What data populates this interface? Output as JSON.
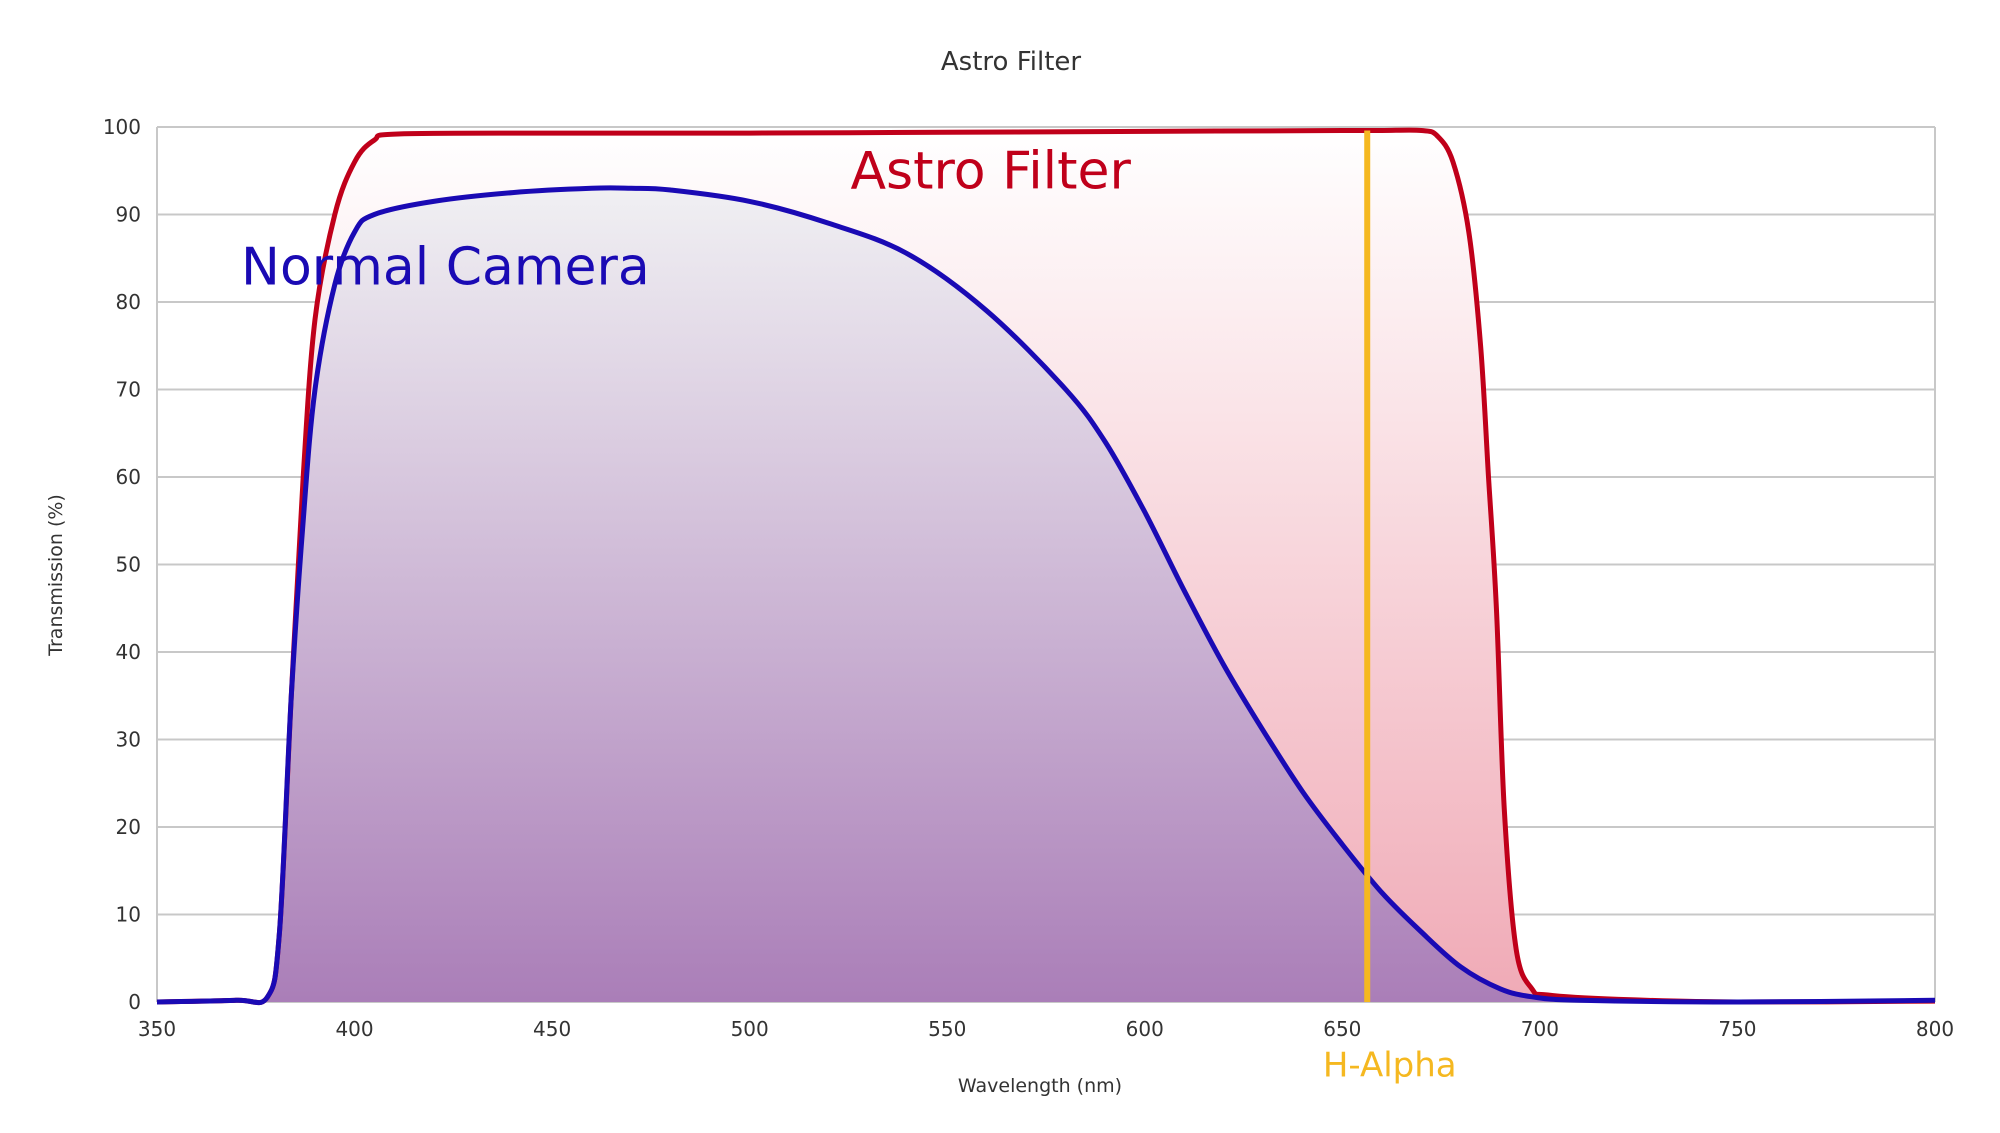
{
  "chart_data": {
    "type": "area",
    "title": "Astro Filter",
    "xlabel": "Wavelength (nm)",
    "ylabel": "Transmission (%)",
    "xlim": [
      350,
      800
    ],
    "ylim": [
      0,
      100
    ],
    "xticks": [
      350,
      400,
      450,
      500,
      550,
      600,
      650,
      700,
      750,
      800
    ],
    "yticks": [
      0,
      10,
      20,
      30,
      40,
      50,
      60,
      70,
      80,
      90,
      100
    ],
    "grid": true,
    "series": [
      {
        "name": "Astro Filter",
        "color": "#c0001a",
        "fill": "pink-to-white gradient",
        "x": [
          350,
          370,
          378,
          381,
          384,
          387,
          390,
          395,
          400,
          405,
          411,
          450,
          500,
          550,
          600,
          650,
          660,
          670,
          674,
          678,
          682,
          685,
          687,
          689,
          691,
          694,
          698,
          702,
          720,
          750,
          800
        ],
        "y": [
          0,
          0.2,
          0.6,
          8,
          35,
          60,
          78,
          90,
          96,
          98.5,
          99.2,
          99.3,
          99.3,
          99.4,
          99.5,
          99.6,
          99.6,
          99.6,
          99,
          96,
          88,
          75,
          60,
          45,
          22,
          6,
          1.5,
          0.8,
          0.3,
          0,
          0.1
        ]
      },
      {
        "name": "Normal Camera",
        "color": "#1a0ab4",
        "fill": "purple-to-white gradient",
        "x": [
          350,
          370,
          378,
          381,
          384,
          387,
          390,
          395,
          400,
          405,
          420,
          440,
          460,
          470,
          480,
          500,
          520,
          540,
          560,
          580,
          590,
          600,
          610,
          620,
          630,
          640,
          650,
          660,
          670,
          680,
          690,
          698,
          710,
          750,
          800
        ],
        "y": [
          0,
          0.2,
          0.6,
          8,
          35,
          55,
          70,
          82,
          88,
          90,
          91.5,
          92.5,
          93,
          93,
          92.8,
          91.5,
          89,
          85.5,
          79,
          70,
          64,
          56,
          47,
          38.5,
          31,
          24,
          18,
          12.5,
          8,
          4,
          1.5,
          0.6,
          0.2,
          0,
          0.2
        ]
      }
    ],
    "annotations": [
      {
        "text": "Astro Filter",
        "x": 561,
        "y": 93,
        "color": "#c0001a"
      },
      {
        "text": "Normal Camera",
        "x": 423,
        "y": 82,
        "color": "#1a0ab4"
      },
      {
        "text": "H-Alpha",
        "x": 662,
        "y": -8.5,
        "color": "#f5b820",
        "marker_x": 656.3
      }
    ]
  }
}
